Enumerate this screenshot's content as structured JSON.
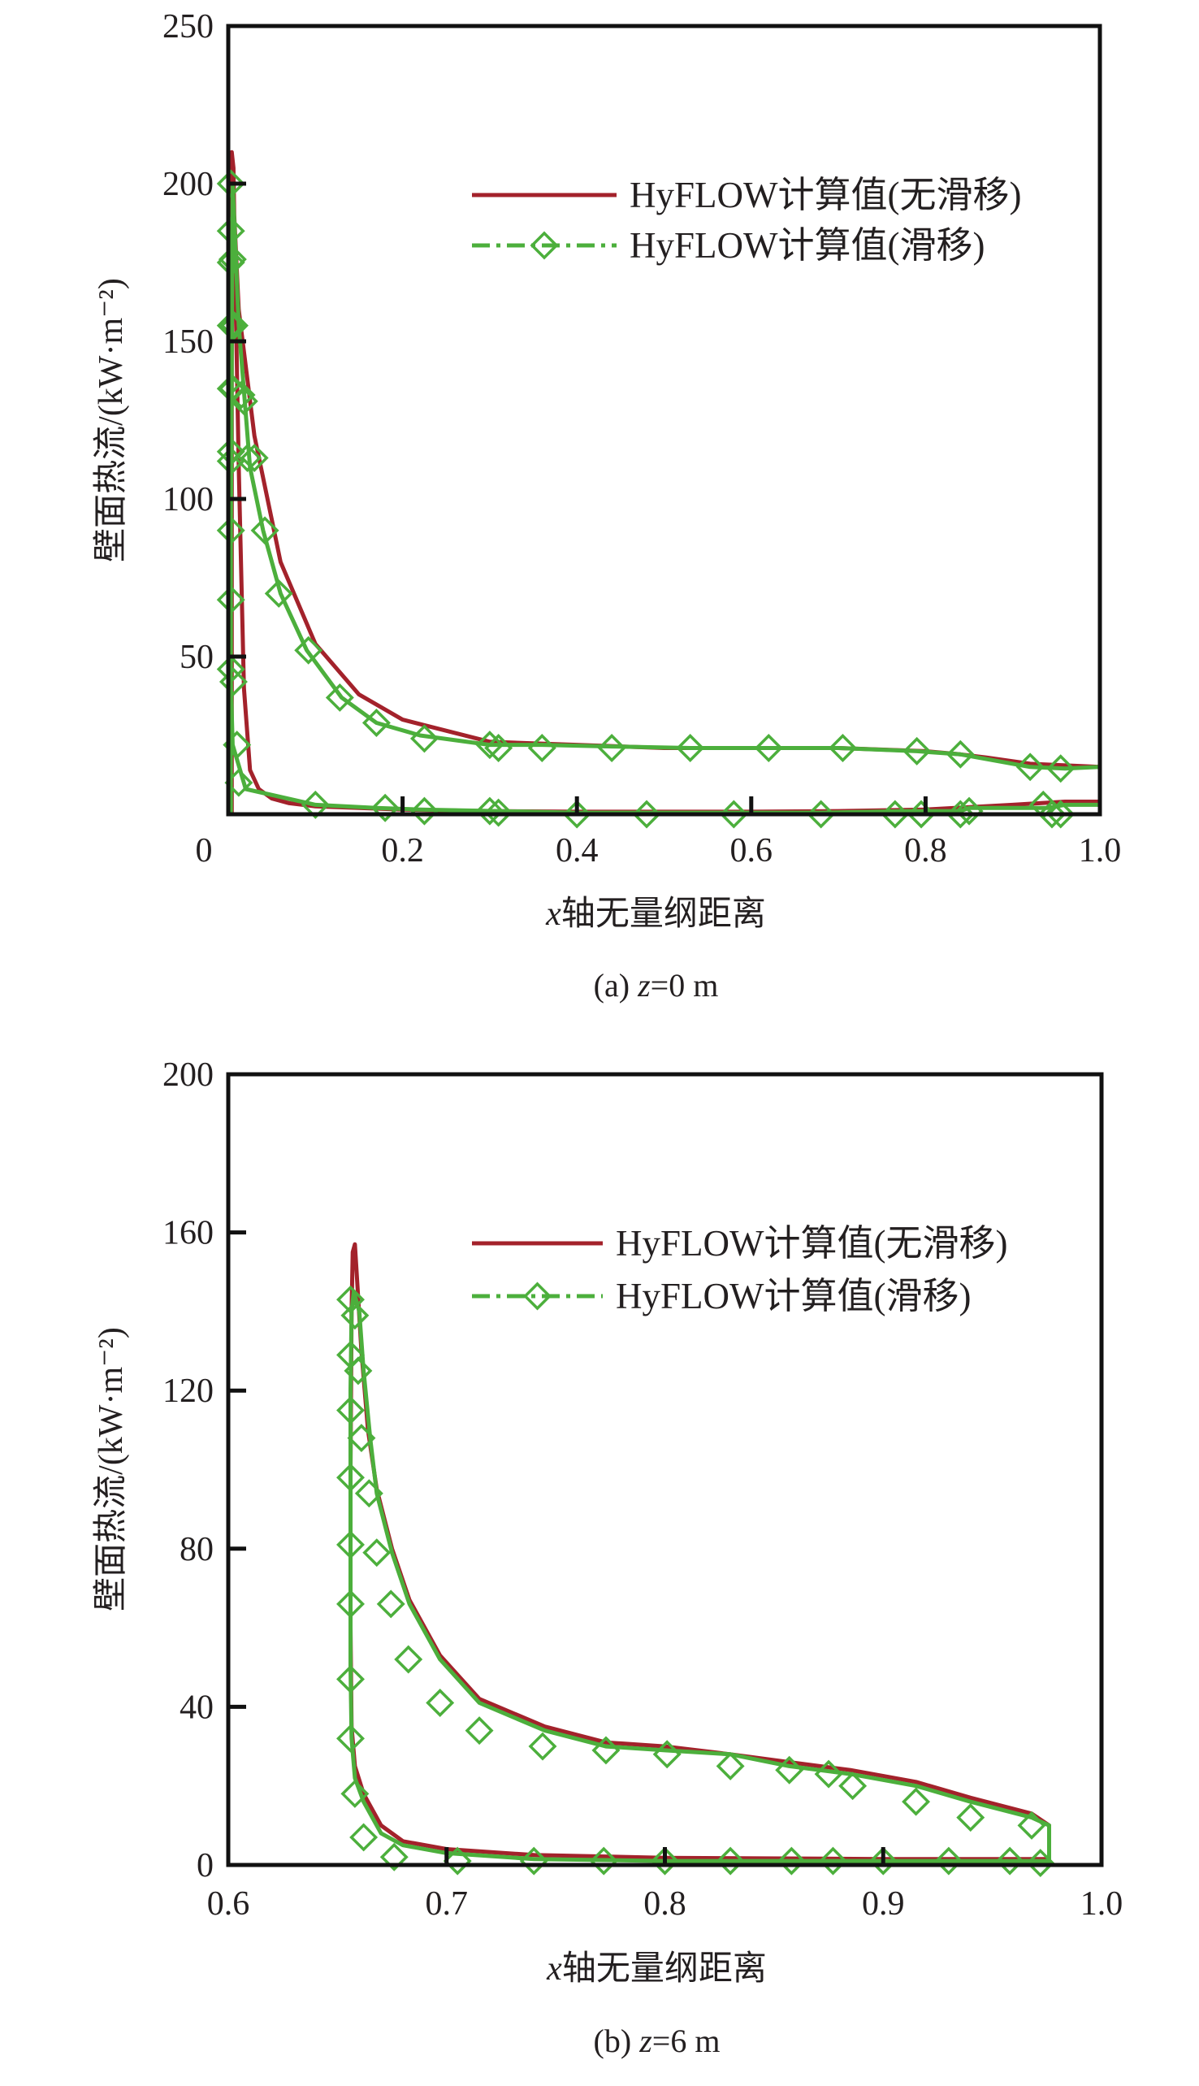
{
  "chart_data": [
    {
      "type": "line",
      "caption": "(a) z=0 m",
      "xlabel": "x轴无量纲距离",
      "ylabel": "壁面热流/(kW·m⁻²)",
      "xlim": [
        0,
        1.0
      ],
      "ylim": [
        0,
        250
      ],
      "xticks": [
        0,
        0.2,
        0.4,
        0.6,
        0.8,
        1.0
      ],
      "xtick_labels": [
        "0",
        "0.2",
        "0.4",
        "0.6",
        "0.8",
        "1.0"
      ],
      "yticks": [
        50,
        100,
        150,
        200,
        250
      ],
      "ytick_labels": [
        "50",
        "100",
        "150",
        "200",
        "250"
      ],
      "grid": false,
      "legend_position": "top-right",
      "series": [
        {
          "name": "HyFLOW计算值(无滑移)",
          "color": "#a3222b",
          "style": "solid",
          "x": [
            0.004,
            0.004,
            0.004,
            0.004,
            0.006,
            0.012,
            0.03,
            0.06,
            0.1,
            0.15,
            0.2,
            0.3,
            0.5,
            0.7,
            0.8,
            0.84,
            0.87,
            0.92,
            1.0,
            1.0,
            1.0,
            0.96,
            0.9,
            0.8,
            0.7,
            0.6,
            0.5,
            0.4,
            0.3,
            0.25,
            0.2,
            0.15,
            0.1,
            0.07,
            0.05,
            0.035,
            0.025,
            0.018,
            0.012,
            0.008,
            0.006,
            0.004
          ],
          "y": [
            0,
            10,
            100,
            210,
            195,
            160,
            120,
            80,
            54,
            38,
            30,
            23,
            21,
            21,
            20,
            19,
            18,
            16,
            15,
            15,
            4,
            4,
            3,
            1.5,
            1,
            0.8,
            0.8,
            0.8,
            1,
            1.2,
            1.5,
            2,
            2.5,
            3.5,
            5,
            8,
            14,
            40,
            110,
            170,
            205,
            210
          ]
        },
        {
          "name": "HyFLOW计算值(滑移)",
          "color": "#4caf3c",
          "style": "dash-dot",
          "marker": "diamond",
          "x": [
            0.003,
            0.003,
            0.003,
            0.005,
            0.012,
            0.025,
            0.04,
            0.06,
            0.09,
            0.13,
            0.17,
            0.22,
            0.3,
            0.36,
            0.44,
            0.53,
            0.62,
            0.7,
            0.79,
            0.84,
            0.92,
            0.96,
            1.0,
            1.0,
            0.96,
            0.94,
            0.85,
            0.84,
            0.78,
            0.68,
            0.58,
            0.48,
            0.4,
            0.31,
            0.22,
            0.17,
            0.1,
            0.02,
            0.005,
            0.003,
            0.003,
            0.003,
            0.003,
            0.003,
            0.003,
            0.003
          ],
          "y": [
            0,
            20,
            90,
            200,
            155,
            110,
            90,
            70,
            52,
            37,
            29,
            25,
            22,
            22,
            21.5,
            21,
            21,
            21,
            20,
            19,
            15,
            14.5,
            15,
            3,
            3,
            2,
            2,
            1,
            1,
            0.5,
            0.5,
            0.5,
            0.5,
            1,
            1.5,
            2,
            3,
            8,
            22,
            42,
            46,
            68,
            113,
            135,
            175,
            185
          ],
          "markers_x": [
            0.003,
            0.003,
            0.003,
            0.003,
            0.005,
            0.007,
            0.005,
            0.003,
            0.003,
            0.003,
            0.003,
            0.003,
            0.003,
            0.006,
            0.01,
            0.012,
            0.015,
            0.018,
            0.022,
            0.03,
            0.042,
            0.058,
            0.092,
            0.128,
            0.17,
            0.225,
            0.3,
            0.31,
            0.36,
            0.44,
            0.53,
            0.62,
            0.705,
            0.79,
            0.84,
            0.92,
            0.955,
            0.1,
            0.18,
            0.225,
            0.3,
            0.31,
            0.4,
            0.48,
            0.58,
            0.68,
            0.765,
            0.795,
            0.84,
            0.85,
            0.935,
            0.945,
            0.955
          ],
          "markers_y": [
            200,
            185,
            175,
            155,
            176,
            155,
            135,
            135,
            115,
            112,
            90,
            68,
            46,
            42,
            22,
            10,
            133,
            131,
            113,
            113,
            90,
            70,
            52,
            37,
            29,
            24,
            22,
            21,
            21,
            21,
            21,
            21,
            21,
            20,
            19,
            15,
            14.5,
            3,
            2,
            1,
            1,
            0.5,
            0,
            0,
            0,
            0,
            0,
            0,
            0,
            1,
            3,
            0,
            0
          ]
        }
      ]
    },
    {
      "type": "line",
      "caption": "(b) z=6 m",
      "xlabel": "x轴无量纲距离",
      "ylabel": "壁面热流/(kW·m⁻²)",
      "xlim": [
        0.6,
        1.0
      ],
      "ylim": [
        0,
        200
      ],
      "xticks": [
        0.6,
        0.7,
        0.8,
        0.9,
        1.0
      ],
      "xtick_labels": [
        "0.6",
        "0.7",
        "0.8",
        "0.9",
        "1.0"
      ],
      "yticks": [
        0,
        40,
        80,
        120,
        160,
        200
      ],
      "ytick_labels": [
        "0",
        "40",
        "80",
        "120",
        "160",
        "200"
      ],
      "grid": false,
      "legend_position": "top-right",
      "series": [
        {
          "name": "HyFLOW计算值(无滑移)",
          "color": "#a3222b",
          "style": "solid",
          "x": [
            0.976,
            0.976,
            0.968,
            0.94,
            0.915,
            0.885,
            0.857,
            0.83,
            0.8,
            0.773,
            0.745,
            0.715,
            0.697,
            0.683,
            0.675,
            0.668,
            0.664,
            0.661,
            0.659,
            0.658,
            0.657,
            0.6565,
            0.656,
            0.656,
            0.6565,
            0.658,
            0.662,
            0.67,
            0.68,
            0.7,
            0.74,
            0.8,
            0.9,
            0.976
          ],
          "y": [
            0,
            10,
            13,
            17,
            21,
            24,
            26,
            28,
            30,
            31,
            35,
            42,
            53,
            67,
            80,
            95,
            110,
            130,
            148,
            157,
            155,
            140,
            100,
            60,
            35,
            25,
            18,
            10,
            6,
            4,
            2.5,
            1.8,
            1.5,
            1.5
          ]
        },
        {
          "name": "HyFLOW计算值(滑移)",
          "color": "#4caf3c",
          "style": "dash-dot",
          "marker": "diamond",
          "x": [
            0.976,
            0.976,
            0.968,
            0.94,
            0.915,
            0.885,
            0.857,
            0.83,
            0.8,
            0.773,
            0.745,
            0.715,
            0.697,
            0.683,
            0.675,
            0.668,
            0.665,
            0.662,
            0.66,
            0.6575,
            0.6565,
            0.656,
            0.656,
            0.656,
            0.6565,
            0.658,
            0.662,
            0.67,
            0.68,
            0.7,
            0.74,
            0.8,
            0.9,
            0.976
          ],
          "y": [
            0,
            10,
            12,
            16,
            20,
            23,
            25,
            28,
            29,
            30,
            34,
            41,
            52,
            66,
            79,
            94,
            108,
            125,
            140,
            145,
            140,
            120,
            80,
            50,
            32,
            22,
            16,
            8,
            5,
            3,
            1.5,
            1,
            1,
            1
          ],
          "markers_x": [
            0.656,
            0.658,
            0.656,
            0.6595,
            0.656,
            0.661,
            0.656,
            0.6645,
            0.656,
            0.668,
            0.656,
            0.6745,
            0.656,
            0.6825,
            0.656,
            0.697,
            0.658,
            0.715,
            0.662,
            0.744,
            0.676,
            0.773,
            0.705,
            0.801,
            0.74,
            0.83,
            0.772,
            0.857,
            0.8,
            0.875,
            0.83,
            0.886,
            0.858,
            0.915,
            0.877,
            0.94,
            0.9,
            0.968,
            0.93,
            0.972,
            0.958
          ],
          "markers_y": [
            143,
            139,
            129,
            125,
            115,
            108,
            98,
            94,
            81,
            79,
            66,
            66,
            47,
            52,
            32,
            41,
            18,
            34,
            7,
            30,
            2,
            29,
            1,
            28,
            1,
            25,
            1,
            24,
            1,
            23,
            1,
            20,
            1,
            16,
            1,
            12,
            1,
            10,
            1,
            0.5,
            1
          ]
        }
      ]
    }
  ]
}
